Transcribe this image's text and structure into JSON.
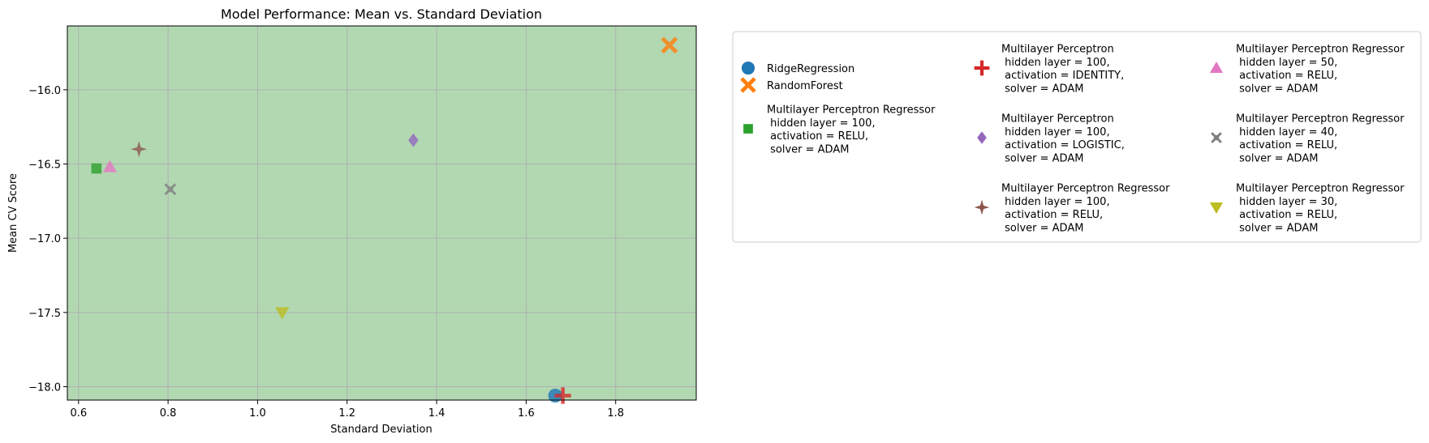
{
  "chart_data": {
    "type": "scatter",
    "title": "Model Performance: Mean vs. Standard Deviation",
    "xlabel": "Standard Deviation",
    "ylabel": "Mean CV Score",
    "xlim": [
      0.575,
      1.98
    ],
    "ylim": [
      -15.57,
      -18.09
    ],
    "x_ticks": [
      0.6,
      0.8,
      1.0,
      1.2,
      1.4,
      1.6,
      1.8
    ],
    "x_tick_labels": [
      "0.6",
      "0.8",
      "1.0",
      "1.2",
      "1.4",
      "1.6",
      "1.8"
    ],
    "y_ticks": [
      -16.0,
      -16.5,
      -17.0,
      -17.5,
      -18.0
    ],
    "y_tick_labels": [
      "−16.0",
      "−16.5",
      "−17.0",
      "−17.5",
      "−18.0"
    ],
    "grid": true,
    "plot_background": "#b2d8b2",
    "legend_position": "outside-right",
    "legend_columns": 3,
    "series": [
      {
        "name": "RidgeRegression",
        "label_lines": [
          "RidgeRegression"
        ],
        "marker": "circle",
        "color": "#1f77b4",
        "x": 1.665,
        "y": -18.06
      },
      {
        "name": "RandomForest",
        "label_lines": [
          "RandomForest"
        ],
        "marker": "x",
        "color": "#ff7f0e",
        "x": 1.92,
        "y": -15.7
      },
      {
        "name": "MLPR 100 relu adam",
        "label_lines": [
          "Multilayer Perceptron Regressor",
          " hidden layer = 100,",
          " activation = RELU,",
          " solver = ADAM"
        ],
        "marker": "square",
        "color": "#2ca02c",
        "x": 0.64,
        "y": -16.53
      },
      {
        "name": "MLP 100 identity adam",
        "label_lines": [
          "Multilayer Perceptron",
          " hidden layer = 100,",
          " activation = IDENTITY,",
          " solver = ADAM"
        ],
        "marker": "plus",
        "color": "#d62728",
        "x": 1.682,
        "y": -18.06
      },
      {
        "name": "MLP 100 logistic adam",
        "label_lines": [
          "Multilayer Perceptron",
          " hidden layer = 100,",
          " activation = LOGISTIC,",
          " solver = ADAM"
        ],
        "marker": "diamond",
        "color": "#9467bd",
        "x": 1.348,
        "y": -16.34
      },
      {
        "name": "MLPR 100 relu adam b",
        "label_lines": [
          "Multilayer Perceptron Regressor",
          " hidden layer = 100,",
          " activation = RELU,",
          " solver = ADAM"
        ],
        "marker": "star4",
        "color": "#8c564b",
        "x": 0.735,
        "y": -16.4
      },
      {
        "name": "MLPR 50 relu adam",
        "label_lines": [
          "Multilayer Perceptron Regressor",
          " hidden layer = 50,",
          " activation = RELU,",
          " solver = ADAM"
        ],
        "marker": "triangle-up",
        "color": "#e377c2",
        "x": 0.67,
        "y": -16.52
      },
      {
        "name": "MLPR 40 relu adam",
        "label_lines": [
          "Multilayer Perceptron Regressor",
          " hidden layer = 40,",
          " activation = RELU,",
          " solver = ADAM"
        ],
        "marker": "x-thin",
        "color": "#7f7f7f",
        "x": 0.805,
        "y": -16.67
      },
      {
        "name": "MLPR 30 relu adam",
        "label_lines": [
          "Multilayer Perceptron Regressor",
          " hidden layer = 30,",
          " activation = RELU,",
          " solver = ADAM"
        ],
        "marker": "triangle-down",
        "color": "#bcbd22",
        "x": 1.055,
        "y": -17.5
      }
    ]
  }
}
